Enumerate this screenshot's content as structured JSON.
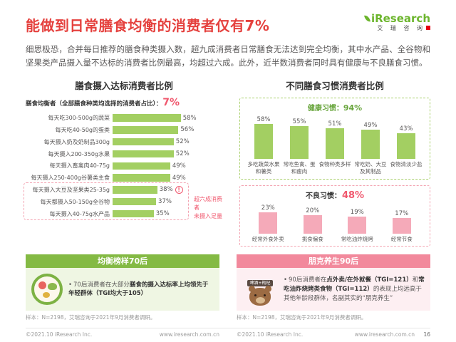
{
  "colors": {
    "title-red": "#e5413e",
    "accent-pink": "#f0586e",
    "green-bar": "#a3cf62",
    "green-dark": "#84ba44",
    "green-text": "#68a53c",
    "green-border": "#a9d06c",
    "green-bg": "#eff6e3",
    "pink-bar": "#f5aab9",
    "pink-dark": "#f2899c",
    "pink-border": "#f3a3b1",
    "pink-bg": "#fdeff2",
    "text-body": "#595757",
    "logo-green": "#6cb52d",
    "logo-red": "#e60012"
  },
  "header": {
    "title": "能做到日常膳食均衡的消费者仅有7%",
    "logo": {
      "brand": "iResearch",
      "cn": "艾 瑞 咨 询"
    }
  },
  "intro": "细思极恐，合并每日推荐的膳食种类摄入数，超九成消费者日常膳食无法达到完全均衡，其中水产品、全谷物和坚果类产品摄入量不达标的消费者比例最高，均超过六成。此外，近半数消费者同时具有健康与不良膳食习惯。",
  "left_chart": {
    "title": "膳食摄入达标消费者比例",
    "subtitle": "膳食均衡者（全部膳食种类均选择的消费者占比）：",
    "subtitle_value": "7%",
    "alert_mark": "!",
    "annotation_line1": "超六成消费者",
    "annotation_line2": "未摄入足量"
  },
  "right_chart": {
    "title": "不同膳食习惯消费者比例",
    "healthy": {
      "label": "健康习惯：",
      "value": "94%"
    },
    "bad": {
      "label": "不良习惯：",
      "value": "48%"
    }
  },
  "chart_data": [
    {
      "type": "bar",
      "orientation": "horizontal",
      "title": "膳食摄入达标消费者比例",
      "unit": "%",
      "xlim": [
        0,
        100
      ],
      "categories": [
        "每天吃300-500g的蔬菜",
        "每天吃40-50g的蛋类",
        "每天摄入奶及奶制品300g",
        "每天摄入200-350g水果",
        "每天摄入畜禽肉40-75g",
        "每天摄入250-400g谷薯类主食",
        "每天摄入大豆及坚果类25-35g",
        "每天都摄入50-150g全谷物",
        "每天摄入40-75g水产品"
      ],
      "values": [
        58,
        56,
        52,
        52,
        49,
        49,
        38,
        37,
        35
      ],
      "display": [
        "58%",
        "56%",
        "52%",
        "52%",
        "49%",
        "49%",
        "38%",
        "37%",
        "35%"
      ]
    },
    {
      "type": "bar",
      "orientation": "vertical",
      "title": "健康习惯：94%",
      "unit": "%",
      "categories": [
        "多吃蔬菜水果和薯类",
        "常吃鱼禽、蛋和瘦肉",
        "食物种类多样",
        "常吃奶、大豆及其制品",
        "食物清淡少盐"
      ],
      "values": [
        58,
        55,
        51,
        49,
        43
      ],
      "display": [
        "58%",
        "55%",
        "51%",
        "49%",
        "43%"
      ]
    },
    {
      "type": "bar",
      "orientation": "vertical",
      "title": "不良习惯：48%",
      "unit": "%",
      "categories": [
        "经常外食外卖",
        "挑食偏食",
        "常吃油炸烧烤",
        "经常节食"
      ],
      "values": [
        23,
        20,
        19,
        17
      ],
      "display": [
        "23%",
        "20%",
        "19%",
        "17%"
      ]
    }
  ],
  "banner_left": {
    "title": "均衡榜样70后",
    "bullet": "•",
    "text_normal": "70后消费者在大部分",
    "text_bold": "膳食的摄入达标率上均领先于年轻群体（TGI均大于105）"
  },
  "banner_right": {
    "title": "朋克养生90后",
    "bullet": "•",
    "icon_sign": "啤酒+枸杞",
    "t1": "90后消费者在",
    "b1": "点外卖/在外就餐（TGI=121）",
    "t2": "和",
    "b2": "常吃油炸烧烤类食物（TGI=112）",
    "t3": "的表现上均远高于其他年龄段群体，名副其实的“朋克养生”"
  },
  "sample_note": "样本：N=2198，艾瑞咨询于2021年9月消费者调研。",
  "footer": {
    "copyright": "©2021.10 iResearch Inc.",
    "site": "www.iresearch.com.cn",
    "page": "16"
  }
}
